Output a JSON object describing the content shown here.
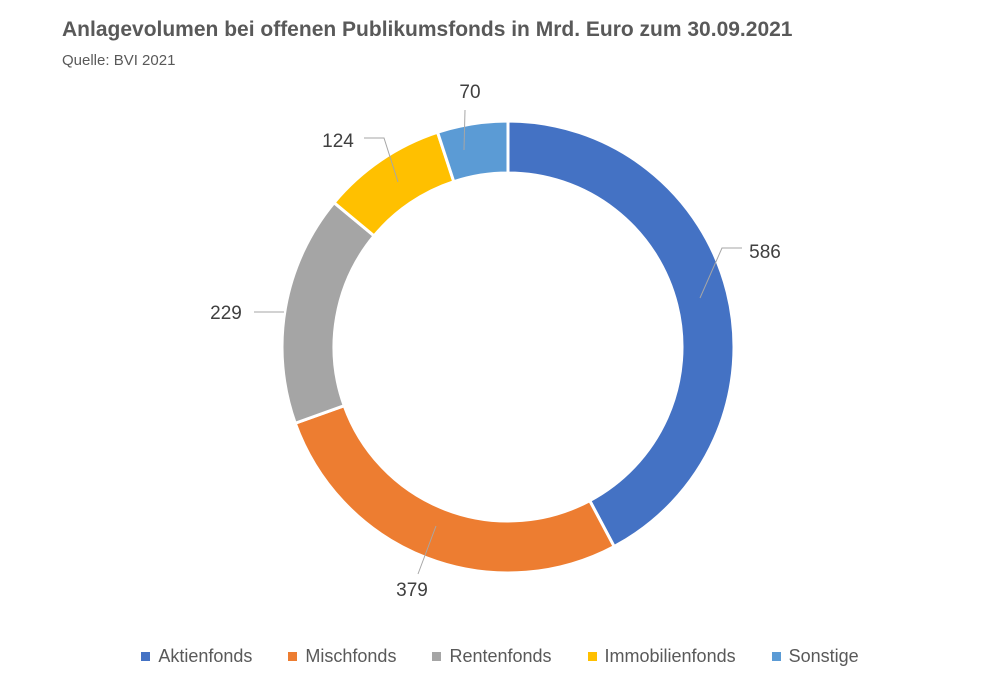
{
  "chart_title": "Anlagevolumen bei offenen Publikumsfonds in Mrd. Euro zum 30.09.2021",
  "chart_subtitle": "Quelle: BVI 2021",
  "chart_data": {
    "type": "pie",
    "variant": "doughnut",
    "title": "Anlagevolumen bei offenen Publikumsfonds in Mrd. Euro zum 30.09.2021",
    "subtitle": "Quelle: BVI 2021",
    "categories": [
      "Aktienfonds",
      "Mischfonds",
      "Rentenfonds",
      "Immobilienfonds",
      "Sonstige"
    ],
    "values": [
      586,
      379,
      229,
      124,
      70
    ],
    "colors": [
      "#4472C4",
      "#ED7D31",
      "#A5A5A5",
      "#FFC000",
      "#5B9BD5"
    ],
    "data_labels": [
      "586",
      "379",
      "229",
      "124",
      "70"
    ],
    "legend_position": "bottom",
    "start_angle": "12 o'clock",
    "direction": "clockwise"
  }
}
